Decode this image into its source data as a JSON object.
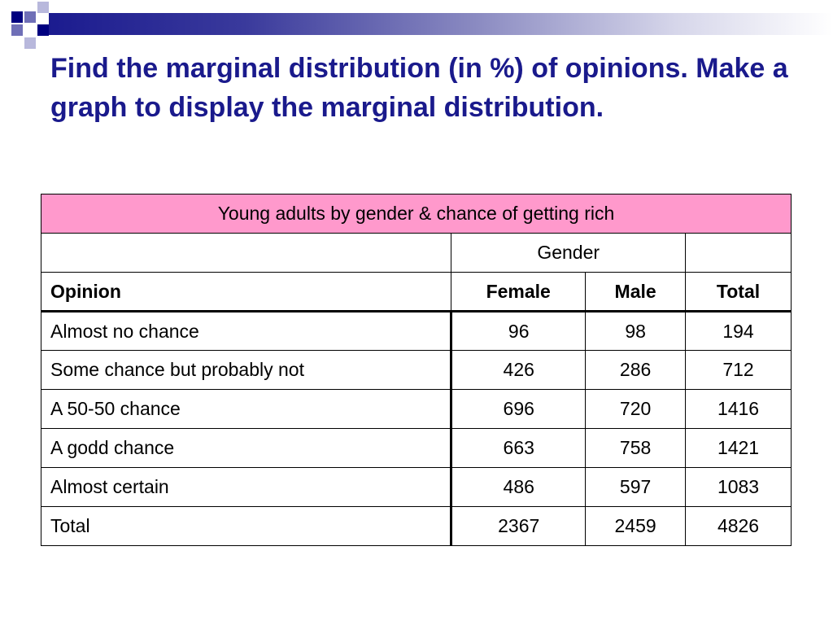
{
  "slide": {
    "title": "Find the marginal distribution (in %) of opinions. Make a graph to display the marginal distribution."
  },
  "table": {
    "caption": "Young adults by gender & chance of getting rich",
    "group_header": "Gender",
    "columns": [
      "Opinion",
      "Female",
      "Male",
      "Total"
    ],
    "rows": [
      {
        "opinion": "Almost no chance",
        "female": "96",
        "male": "98",
        "total": "194"
      },
      {
        "opinion": "Some chance but probably not",
        "female": "426",
        "male": "286",
        "total": "712"
      },
      {
        "opinion": "A 50-50 chance",
        "female": "696",
        "male": "720",
        "total": "1416"
      },
      {
        "opinion": "A godd chance",
        "female": "663",
        "male": "758",
        "total": "1421"
      },
      {
        "opinion": "Almost certain",
        "female": "486",
        "male": "597",
        "total": "1083"
      },
      {
        "opinion": "Total",
        "female": "2367",
        "male": "2459",
        "total": "4826"
      }
    ]
  },
  "colors": {
    "title": "#1a1a8c",
    "caption_bg": "#ff99cc",
    "accent_dark": "#000080"
  }
}
